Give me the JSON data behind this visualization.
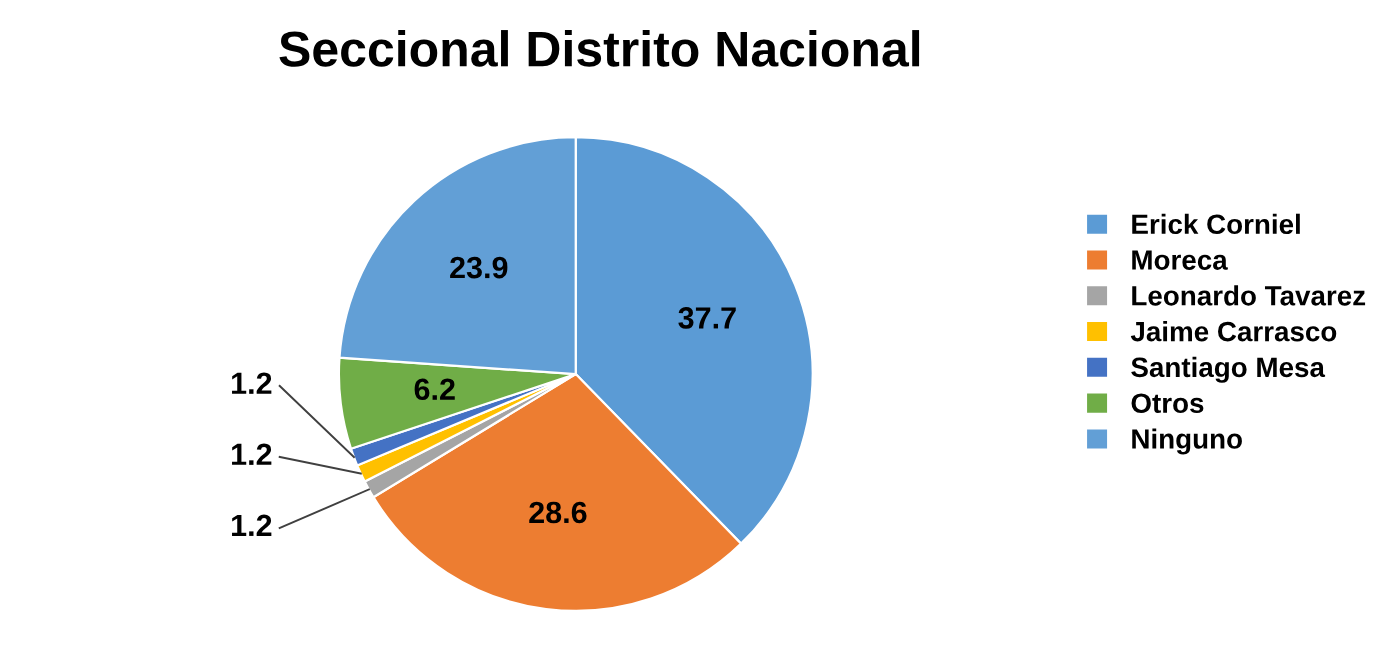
{
  "chart_data": {
    "type": "pie",
    "title": "Seccional Distrito Nacional",
    "categories": [
      "Erick Corniel",
      "Moreca",
      "Leonardo Tavarez",
      "Jaime Carrasco",
      "Santiago Mesa",
      "Otros",
      "Ninguno"
    ],
    "values": [
      37.7,
      28.6,
      1.2,
      1.2,
      1.2,
      6.2,
      23.9
    ],
    "colors": [
      "#5b9bd5",
      "#ed7d31",
      "#a5a5a5",
      "#ffc000",
      "#4472c4",
      "#70ad47",
      "#629fd6"
    ],
    "data_labels": true,
    "legend": "right"
  }
}
